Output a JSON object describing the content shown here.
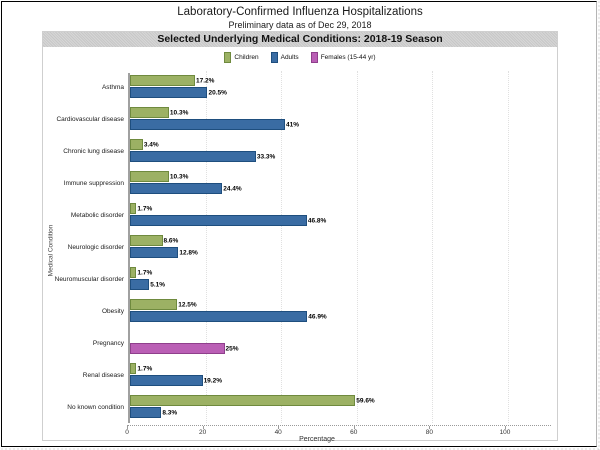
{
  "header": {
    "title": "Laboratory-Confirmed Influenza Hospitalizations",
    "subtitle": "Preliminary data as of Dec 29, 2018",
    "banner": "Selected Underlying Medical Conditions: 2018-19 Season"
  },
  "legend": [
    {
      "label": "Children",
      "color": "#9cb164",
      "border": "#6f8a3e"
    },
    {
      "label": "Adults",
      "color": "#3a6ca3",
      "border": "#1e4e7e"
    },
    {
      "label": "Females (15-44 yr)",
      "color": "#ba5fb5",
      "border": "#8f3f8c"
    }
  ],
  "chart_data": {
    "type": "bar",
    "orientation": "horizontal",
    "title": "Selected Underlying Medical Conditions: 2018-19 Season",
    "xlabel": "Percentage",
    "ylabel": "Medical Condition",
    "xlim": [
      0,
      100
    ],
    "xticks": [
      0,
      20,
      40,
      60,
      80,
      100
    ],
    "grid": "faint dotted vertical gridlines",
    "legend_position": "top",
    "categories": [
      "Asthma",
      "Cardiovascular disease",
      "Chronic lung disease",
      "Immune suppression",
      "Metabolic disorder",
      "Neurologic disorder",
      "Neuromuscular disorder",
      "Obesity",
      "Pregnancy",
      "Renal disease",
      "No known condition"
    ],
    "series": [
      {
        "name": "Children",
        "values": [
          17.2,
          10.3,
          3.4,
          10.3,
          1.7,
          8.6,
          1.7,
          12.5,
          null,
          1.7,
          59.6
        ]
      },
      {
        "name": "Adults",
        "values": [
          20.5,
          41,
          33.3,
          24.4,
          46.8,
          12.8,
          5.1,
          46.9,
          null,
          19.2,
          8.3
        ]
      },
      {
        "name": "Females (15-44 yr)",
        "values": [
          null,
          null,
          null,
          null,
          null,
          null,
          null,
          null,
          25,
          null,
          null
        ]
      }
    ],
    "rows": [
      {
        "category": "Asthma",
        "bars": [
          {
            "series": "Children",
            "value": 17.2,
            "label": "17.2%"
          },
          {
            "series": "Adults",
            "value": 20.5,
            "label": "20.5%"
          }
        ]
      },
      {
        "category": "Cardiovascular disease",
        "bars": [
          {
            "series": "Children",
            "value": 10.3,
            "label": "10.3%"
          },
          {
            "series": "Adults",
            "value": 41,
            "label": "41%"
          }
        ]
      },
      {
        "category": "Chronic lung disease",
        "bars": [
          {
            "series": "Children",
            "value": 3.4,
            "label": "3.4%"
          },
          {
            "series": "Adults",
            "value": 33.3,
            "label": "33.3%"
          }
        ]
      },
      {
        "category": "Immune suppression",
        "bars": [
          {
            "series": "Children",
            "value": 10.3,
            "label": "10.3%"
          },
          {
            "series": "Adults",
            "value": 24.4,
            "label": "24.4%"
          }
        ]
      },
      {
        "category": "Metabolic disorder",
        "bars": [
          {
            "series": "Children",
            "value": 1.7,
            "label": "1.7%"
          },
          {
            "series": "Adults",
            "value": 46.8,
            "label": "46.8%"
          }
        ]
      },
      {
        "category": "Neurologic disorder",
        "bars": [
          {
            "series": "Children",
            "value": 8.6,
            "label": "8.6%"
          },
          {
            "series": "Adults",
            "value": 12.8,
            "label": "12.8%"
          }
        ]
      },
      {
        "category": "Neuromuscular disorder",
        "bars": [
          {
            "series": "Children",
            "value": 1.7,
            "label": "1.7%"
          },
          {
            "series": "Adults",
            "value": 5.1,
            "label": "5.1%"
          }
        ]
      },
      {
        "category": "Obesity",
        "bars": [
          {
            "series": "Children",
            "value": 12.5,
            "label": "12.5%"
          },
          {
            "series": "Adults",
            "value": 46.9,
            "label": "46.9%"
          }
        ]
      },
      {
        "category": "Pregnancy",
        "bars": [
          {
            "series": null,
            "value": null,
            "label": ""
          },
          {
            "series": "Females (15-44 yr)",
            "value": 25,
            "label": "25%"
          }
        ]
      },
      {
        "category": "Renal disease",
        "bars": [
          {
            "series": "Children",
            "value": 1.7,
            "label": "1.7%"
          },
          {
            "series": "Adults",
            "value": 19.2,
            "label": "19.2%"
          }
        ]
      },
      {
        "category": "No known condition",
        "bars": [
          {
            "series": "Children",
            "value": 59.6,
            "label": "59.6%"
          },
          {
            "series": "Adults",
            "value": 8.3,
            "label": "8.3%"
          }
        ]
      }
    ]
  }
}
